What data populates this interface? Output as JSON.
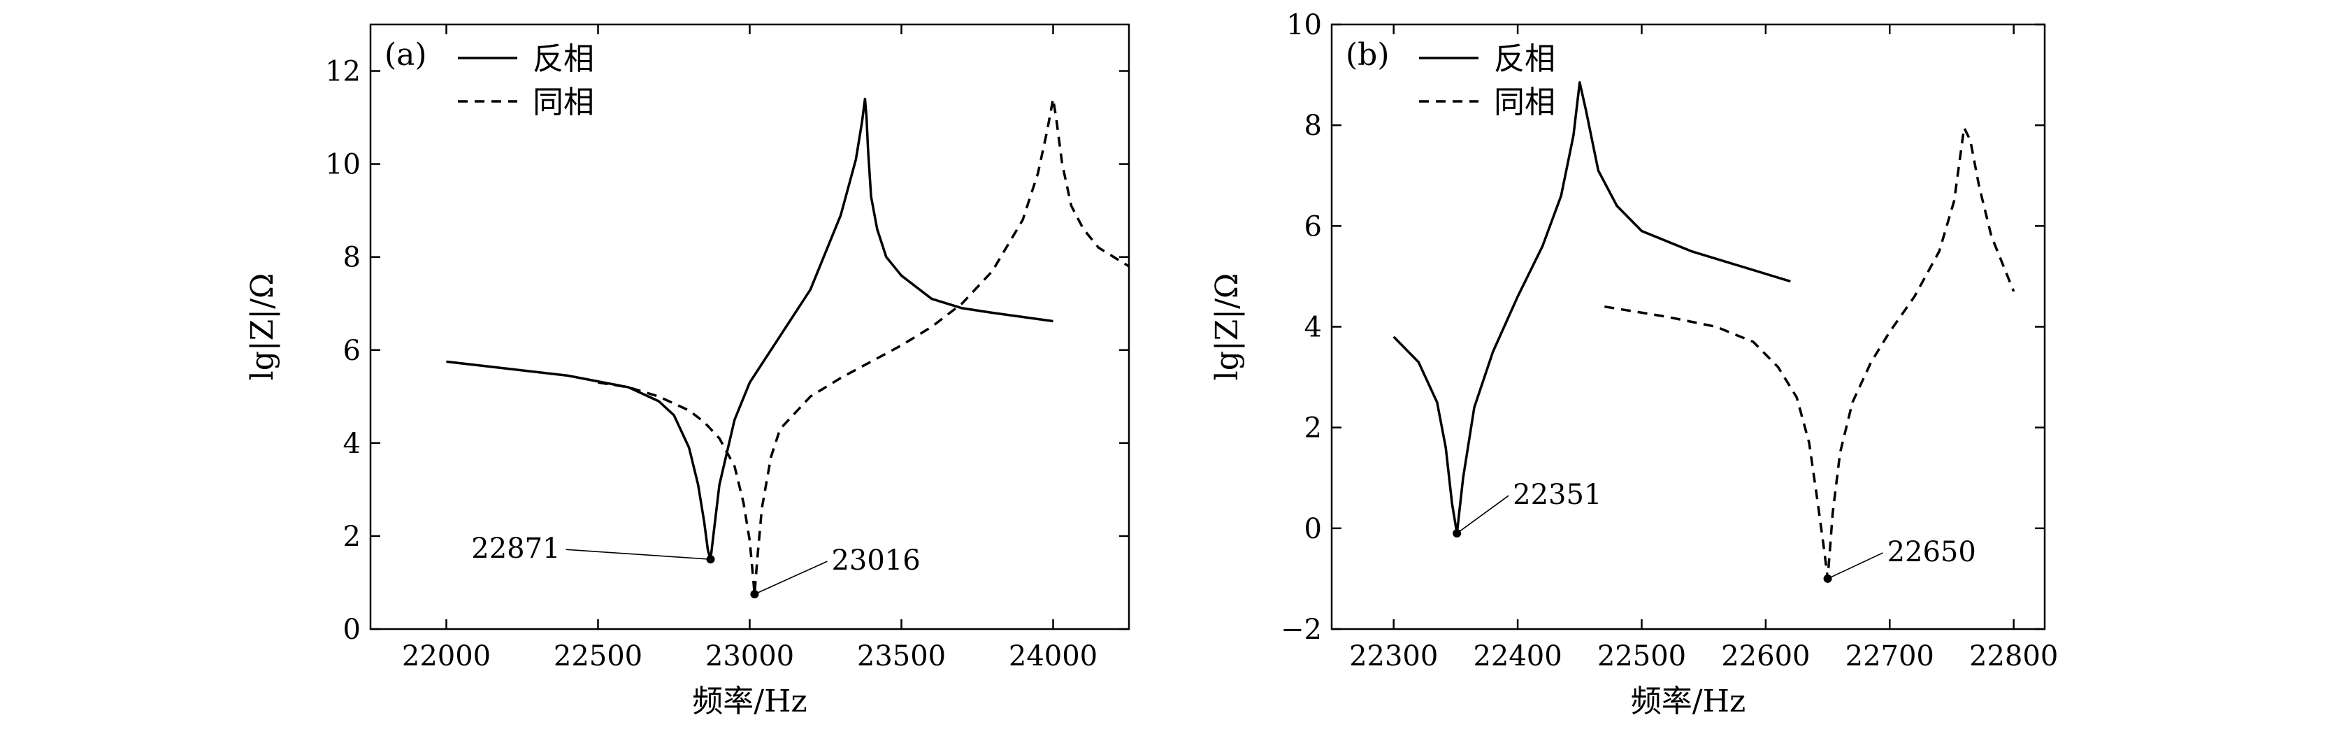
{
  "chart_data": [
    {
      "type": "line",
      "panel_label": "(a)",
      "xlabel": "频率/Hz",
      "ylabel": "lg|Z|/Ω",
      "xlim": [
        21750,
        24250
      ],
      "ylim": [
        0,
        13
      ],
      "xticks": [
        22000,
        22500,
        23000,
        23500,
        24000
      ],
      "yticks": [
        0,
        2,
        4,
        6,
        8,
        10,
        12
      ],
      "legend_position": "top-left",
      "series": [
        {
          "name": "反相",
          "style": "solid",
          "x": [
            22000,
            22200,
            22400,
            22600,
            22700,
            22750,
            22800,
            22830,
            22850,
            22862,
            22871,
            22880,
            22900,
            22950,
            23000,
            23100,
            23200,
            23300,
            23350,
            23370,
            23380,
            23385,
            23390,
            23400,
            23420,
            23450,
            23500,
            23600,
            23700,
            23800,
            24000
          ],
          "y": [
            5.75,
            5.6,
            5.45,
            5.2,
            4.9,
            4.6,
            3.9,
            3.1,
            2.3,
            1.7,
            1.5,
            2.0,
            3.1,
            4.5,
            5.3,
            6.3,
            7.3,
            8.9,
            10.1,
            10.9,
            11.4,
            11.0,
            10.3,
            9.3,
            8.6,
            8.0,
            7.6,
            7.1,
            6.9,
            6.8,
            6.62
          ]
        },
        {
          "name": "同相",
          "style": "dashed",
          "x": [
            22500,
            22600,
            22700,
            22800,
            22850,
            22900,
            22950,
            22980,
            23000,
            23010,
            23016,
            23025,
            23040,
            23070,
            23100,
            23200,
            23300,
            23400,
            23500,
            23600,
            23700,
            23800,
            23900,
            23950,
            23980,
            24000,
            24010,
            24030,
            24060,
            24100,
            24150,
            24200,
            24250
          ],
          "y": [
            5.3,
            5.2,
            5.0,
            4.7,
            4.45,
            4.1,
            3.5,
            2.7,
            1.9,
            1.2,
            0.75,
            1.5,
            2.6,
            3.7,
            4.3,
            5.0,
            5.4,
            5.75,
            6.1,
            6.5,
            7.0,
            7.7,
            8.8,
            9.8,
            10.7,
            11.4,
            11.0,
            10.0,
            9.1,
            8.6,
            8.2,
            8.0,
            7.8
          ]
        }
      ],
      "annotations": [
        {
          "text": "22871",
          "x": 22871,
          "y": 1.5
        },
        {
          "text": "23016",
          "x": 23016,
          "y": 0.75
        }
      ]
    },
    {
      "type": "line",
      "panel_label": "(b)",
      "xlabel": "频率/Hz",
      "ylabel": "lg|Z|/Ω",
      "xlim": [
        22250,
        22825
      ],
      "ylim": [
        -2,
        10
      ],
      "xticks": [
        22300,
        22400,
        22500,
        22600,
        22700,
        22800
      ],
      "yticks": [
        -2,
        0,
        2,
        4,
        6,
        8,
        10
      ],
      "legend_position": "top-left",
      "series": [
        {
          "name": "反相",
          "style": "solid",
          "x": [
            22300,
            22320,
            22335,
            22342,
            22347,
            22351,
            22356,
            22365,
            22380,
            22400,
            22420,
            22435,
            22445,
            22450,
            22455,
            22465,
            22480,
            22500,
            22540,
            22580,
            22620
          ],
          "y": [
            3.8,
            3.3,
            2.5,
            1.6,
            0.5,
            -0.1,
            1.0,
            2.4,
            3.5,
            4.6,
            5.6,
            6.6,
            7.8,
            8.85,
            8.3,
            7.1,
            6.4,
            5.9,
            5.5,
            5.2,
            4.9
          ]
        },
        {
          "name": "同相",
          "style": "dashed",
          "x": [
            22470,
            22520,
            22560,
            22590,
            22610,
            22625,
            22635,
            22642,
            22647,
            22650,
            22654,
            22660,
            22670,
            22685,
            22700,
            22720,
            22740,
            22752,
            22760,
            22765,
            22772,
            22782,
            22800
          ],
          "y": [
            4.4,
            4.2,
            4.0,
            3.7,
            3.2,
            2.6,
            1.7,
            0.5,
            -0.4,
            -1.0,
            0.3,
            1.5,
            2.5,
            3.3,
            3.9,
            4.6,
            5.5,
            6.5,
            7.95,
            7.7,
            6.8,
            5.8,
            4.7
          ]
        }
      ],
      "annotations": [
        {
          "text": "22351",
          "x": 22351,
          "y": -0.1
        },
        {
          "text": "22650",
          "x": 22650,
          "y": -1.0
        }
      ]
    }
  ]
}
